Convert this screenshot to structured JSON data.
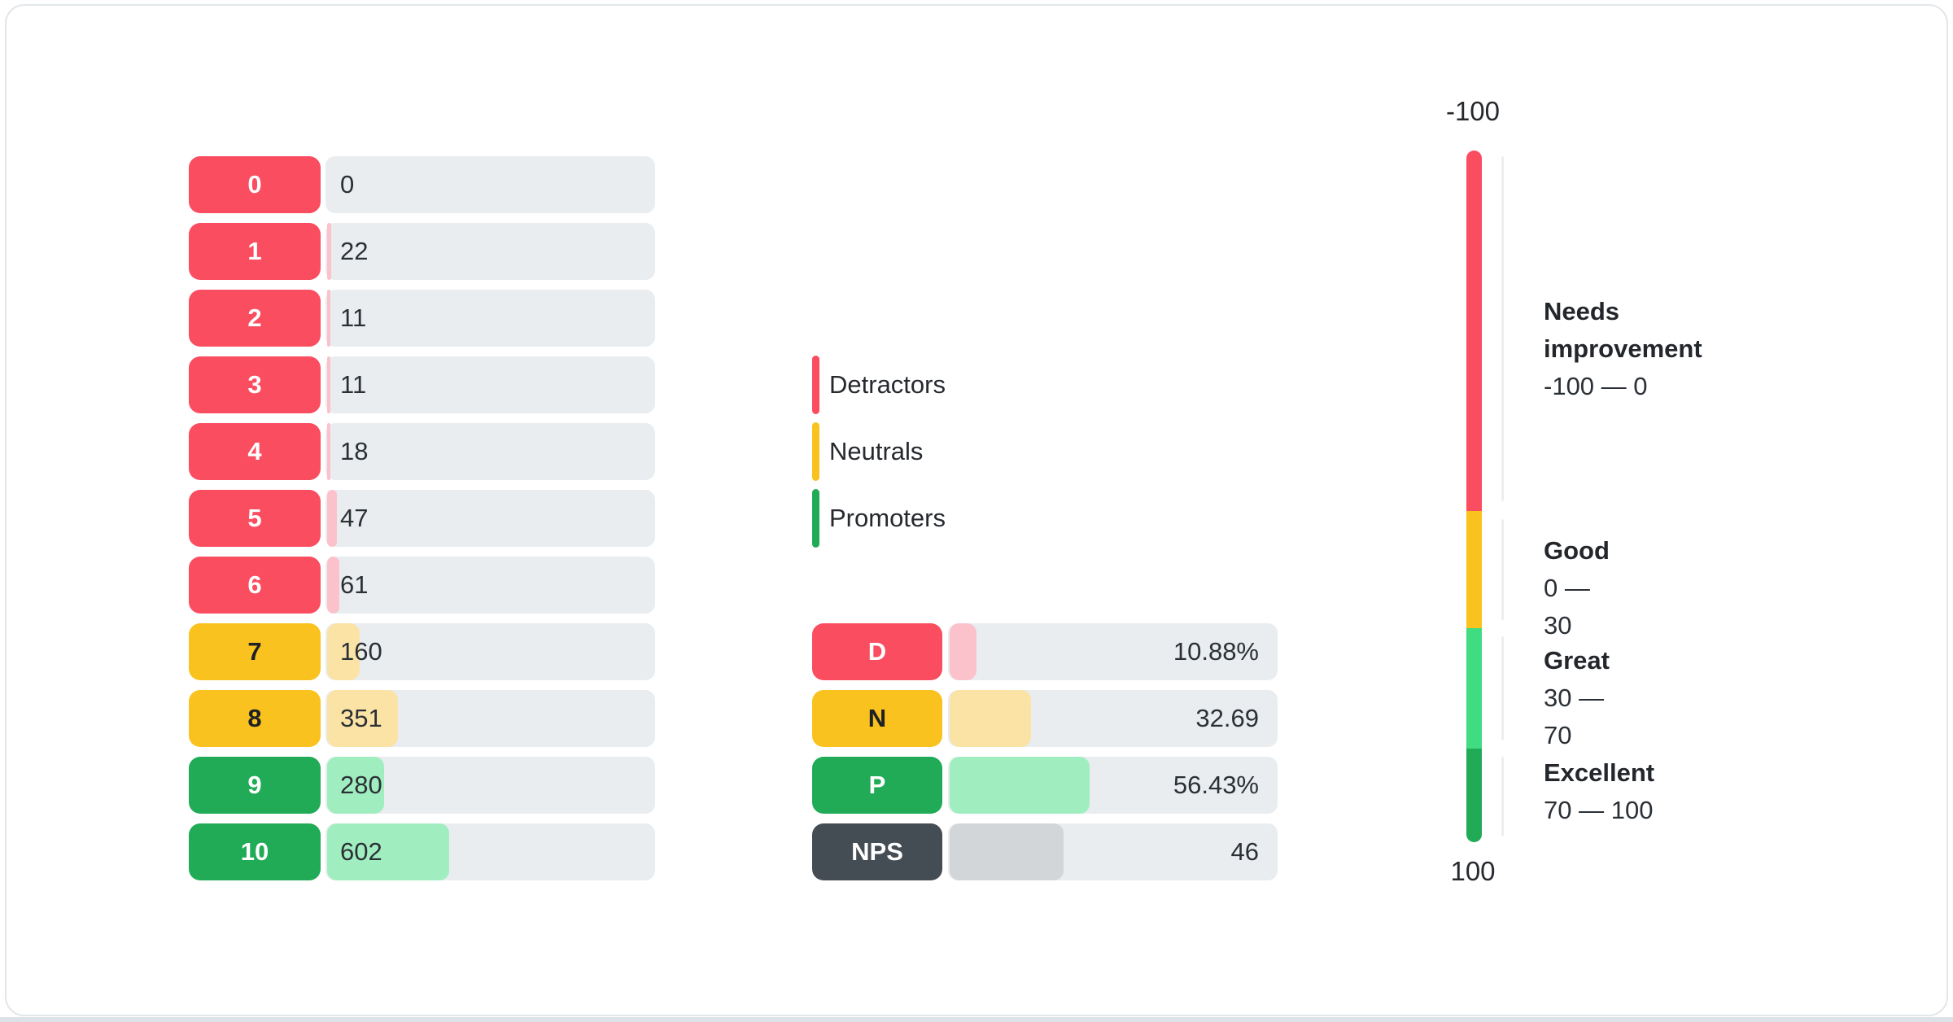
{
  "colors": {
    "detractor": "#fa4d60",
    "detractor_light": "#fbc2cb",
    "neutral": "#f9c21e",
    "neutral_light": "#fbe3a6",
    "promoter": "#21ab57",
    "promoter_light": "#a0eec0",
    "great": "#40dc82",
    "nps": "#444c54",
    "nps_light": "#d2d6d9",
    "track": "#e9edf0",
    "badge_text_light": "#ffffff",
    "badge_text_dark": "#1e2125"
  },
  "chart_data": [
    {
      "type": "bar",
      "name": "score-distribution",
      "categories": [
        "0",
        "1",
        "2",
        "3",
        "4",
        "5",
        "6",
        "7",
        "8",
        "9",
        "10"
      ],
      "values": [
        0,
        22,
        11,
        11,
        18,
        47,
        61,
        160,
        351,
        280,
        602
      ],
      "groups": [
        "detractor",
        "detractor",
        "detractor",
        "detractor",
        "detractor",
        "detractor",
        "detractor",
        "neutral",
        "neutral",
        "promoter",
        "promoter"
      ],
      "xlabel": "",
      "ylabel": ""
    },
    {
      "type": "bar",
      "name": "nps-summary",
      "rows": [
        {
          "label": "D",
          "display": "10.88%",
          "value": 10.88,
          "group": "detractor"
        },
        {
          "label": "N",
          "display": "32.69",
          "value": 32.69,
          "group": "neutral"
        },
        {
          "label": "P",
          "display": "56.43%",
          "value": 56.43,
          "group": "promoter"
        },
        {
          "label": "NPS",
          "display": "46",
          "value": 46,
          "group": "nps"
        }
      ]
    },
    {
      "type": "gauge",
      "name": "nps-scale",
      "min_label": "-100",
      "max_label": "100",
      "zones": [
        {
          "title": "Needs improvement",
          "range": "-100 — 0",
          "color_key": "detractor"
        },
        {
          "title": "Good",
          "range": "0 — 30",
          "color_key": "neutral"
        },
        {
          "title": "Great",
          "range": "30 — 70",
          "color_key": "great"
        },
        {
          "title": "Excellent",
          "range": "70 — 100",
          "color_key": "promoter"
        }
      ]
    }
  ],
  "legend": {
    "items": [
      {
        "label": "Detractors",
        "group": "detractor"
      },
      {
        "label": "Neutrals",
        "group": "neutral"
      },
      {
        "label": "Promoters",
        "group": "promoter"
      }
    ]
  }
}
